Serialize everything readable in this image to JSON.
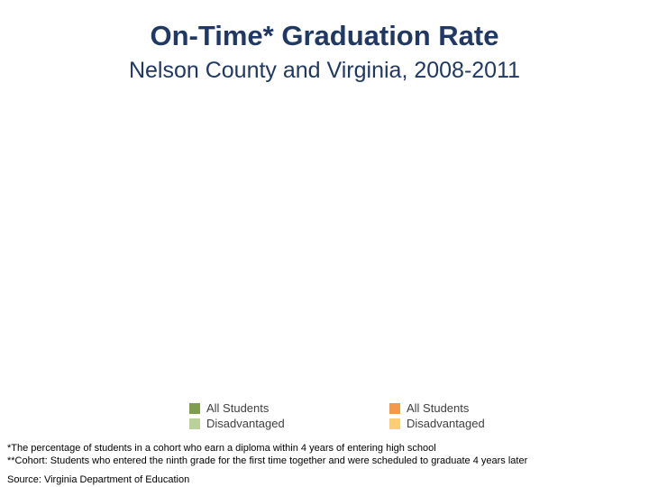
{
  "chart_data": {
    "type": "bar",
    "title": "On-Time* Graduation Rate",
    "subtitle": "Nelson County and Virginia, 2008-2011",
    "categories": [],
    "series": [
      {
        "name": "All Students",
        "values": [],
        "color": "#7f9f4f"
      },
      {
        "name": "Disadvantaged",
        "values": [],
        "color": "#b9d19a"
      },
      {
        "name": "All Students",
        "values": [],
        "color": "#f39a4a"
      },
      {
        "name": "Disadvantaged",
        "values": [],
        "color": "#fccd72"
      }
    ],
    "legend_placement": "bottom",
    "grid": false
  },
  "legend": {
    "groups": [
      {
        "items": [
          {
            "label": "All Students",
            "color": "#7f9f4f"
          },
          {
            "label": "Disadvantaged",
            "color": "#b9d19a"
          }
        ]
      },
      {
        "items": [
          {
            "label": "All Students",
            "color": "#f39a4a"
          },
          {
            "label": "Disadvantaged",
            "color": "#fccd72"
          }
        ]
      }
    ]
  },
  "footnotes": [
    "*The percentage of students in a cohort who earn a diploma within 4 years of entering high school",
    "**Cohort: Students who entered the ninth grade for the first time together and were scheduled to graduate 4 years later"
  ],
  "source": "Source: Virginia Department of Education"
}
